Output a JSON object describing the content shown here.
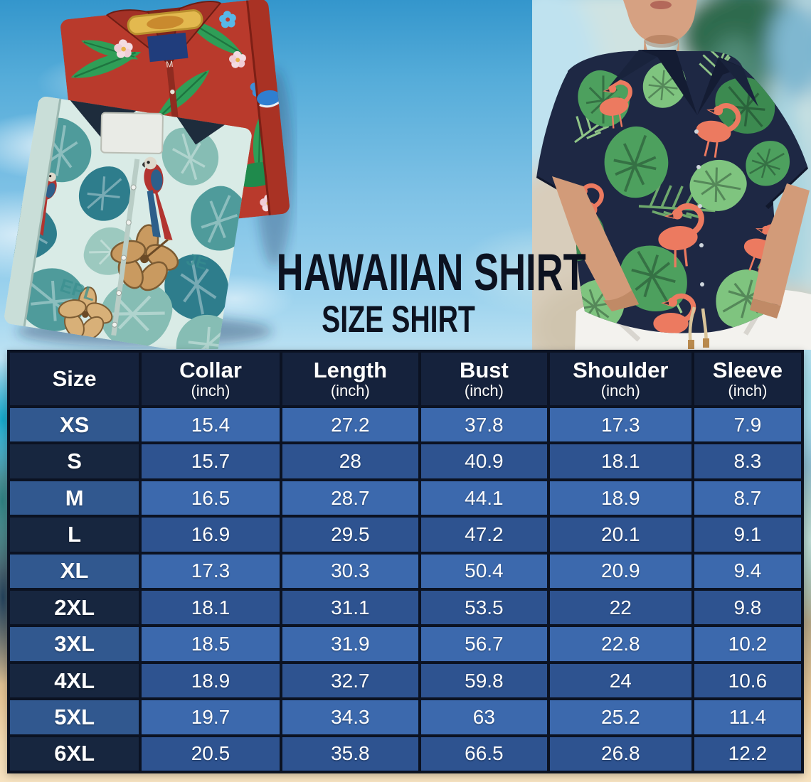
{
  "title": {
    "main": "HAWAIIAN SHIRT",
    "sub": "SIZE SHIRT"
  },
  "chart_data": {
    "type": "table",
    "title": "HAWAIIAN SHIRT",
    "subtitle": "SIZE SHIRT",
    "columns": [
      "Size",
      "Collar",
      "Length",
      "Bust",
      "Shoulder",
      "Sleeve"
    ],
    "units": [
      "",
      "(inch)",
      "(inch)",
      "(inch)",
      "(inch)",
      "(inch)"
    ],
    "rows": [
      [
        "XS",
        "15.4",
        "27.2",
        "37.8",
        "17.3",
        "7.9"
      ],
      [
        "S",
        "15.7",
        "28",
        "40.9",
        "18.1",
        "8.3"
      ],
      [
        "M",
        "16.5",
        "28.7",
        "44.1",
        "18.9",
        "8.7"
      ],
      [
        "L",
        "16.9",
        "29.5",
        "47.2",
        "20.1",
        "9.1"
      ],
      [
        "XL",
        "17.3",
        "30.3",
        "50.4",
        "20.9",
        "9.4"
      ],
      [
        "2XL",
        "18.1",
        "31.1",
        "53.5",
        "22",
        "9.8"
      ],
      [
        "3XL",
        "18.5",
        "31.9",
        "56.7",
        "22.8",
        "10.2"
      ],
      [
        "4XL",
        "18.9",
        "32.7",
        "59.8",
        "24",
        "10.6"
      ],
      [
        "5XL",
        "19.7",
        "34.3",
        "63",
        "25.2",
        "11.4"
      ],
      [
        "6XL",
        "20.5",
        "35.8",
        "66.5",
        "26.8",
        "12.2"
      ]
    ],
    "row_shading": "alternating",
    "legend_position": "none"
  },
  "colors": {
    "header_bg": "#15223c",
    "row_light": "#3c69ad",
    "row_dark": "#2e5390",
    "size_light": "#31588f",
    "size_dark": "#17263f",
    "grid_line": "#0b1222",
    "title_text": "#0c1220",
    "sand": "#f2d9b0",
    "sky": "#7fc2e6"
  }
}
